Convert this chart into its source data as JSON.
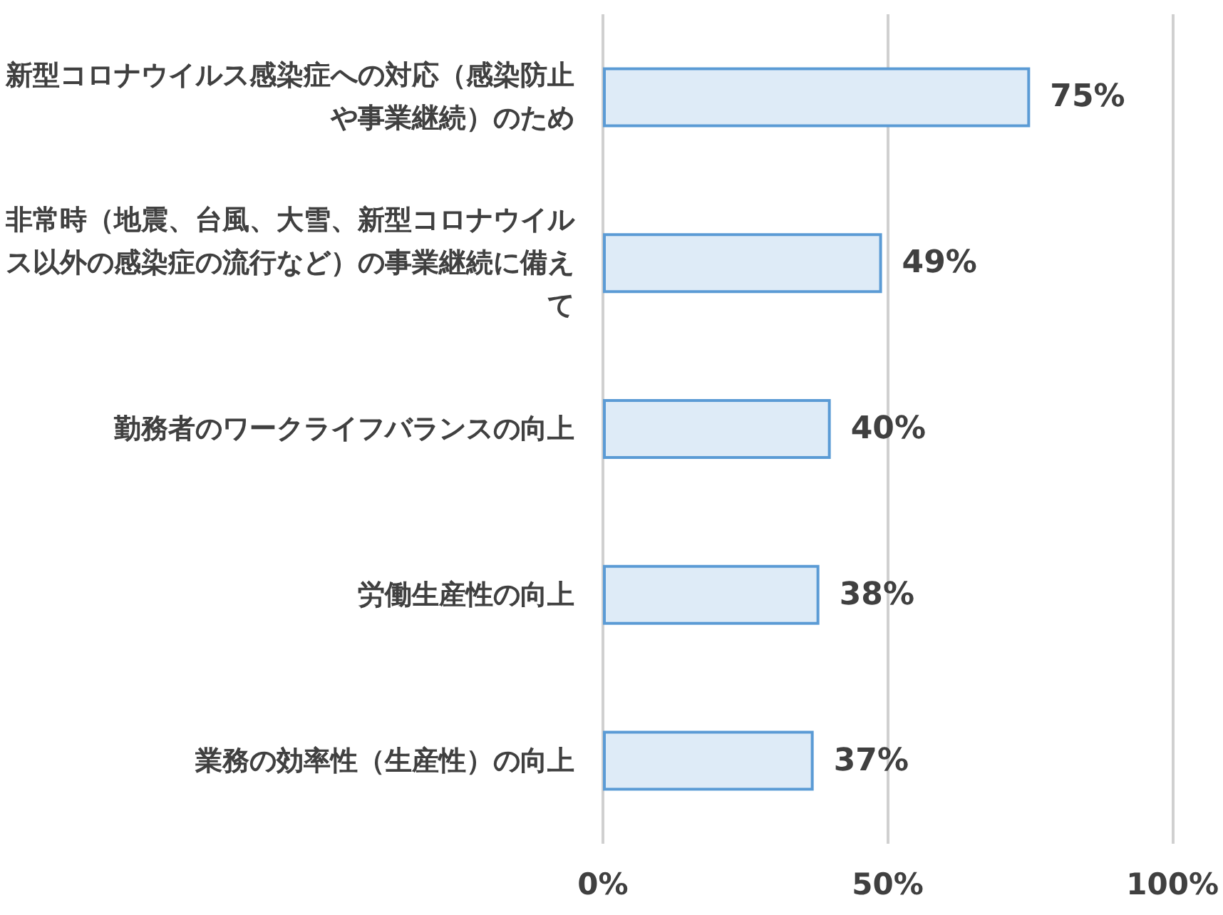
{
  "chart_data": {
    "type": "bar",
    "orientation": "horizontal",
    "categories": [
      "新型コロナウイルス感染症への対応（感染防止や事業継続）のため",
      "非常時（地震、台風、大雪、新型コロナウイルス以外の感染症の流行など）の事業継続に備えて",
      "勤務者のワークライフバランスの向上",
      "労働生産性の向上",
      "業務の効率性（生産性）の向上"
    ],
    "values": [
      75,
      49,
      40,
      38,
      37
    ],
    "value_labels": [
      "75%",
      "49%",
      "40%",
      "38%",
      "37%"
    ],
    "color": "#deebf7",
    "xlim": [
      0,
      100
    ],
    "xticks": [
      {
        "value": 0,
        "label": "0%"
      },
      {
        "value": 50,
        "label": "50%"
      },
      {
        "value": 100,
        "label": "100%"
      }
    ],
    "grid": "x"
  }
}
